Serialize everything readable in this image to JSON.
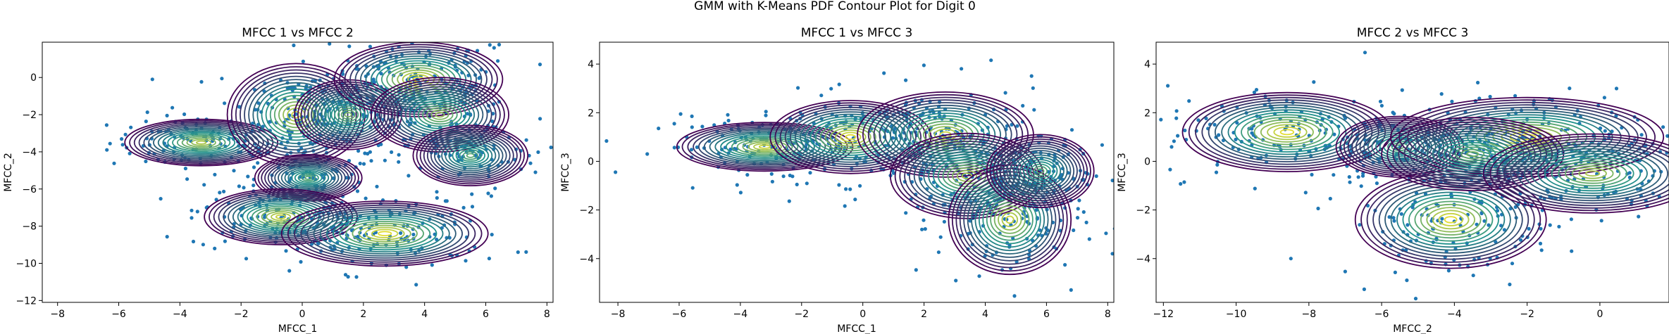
{
  "figure": {
    "suptitle": "GMM with K-Means PDF Contour Plot for Digit 0"
  },
  "colors": {
    "points": "#1f77b4",
    "contour_low": "#440154",
    "contour_mid": "#21918c",
    "contour_high": "#fde725"
  },
  "chart_data": [
    {
      "type": "scatter",
      "title": "MFCC 1 vs MFCC 2",
      "xlabel": "MFCC_1",
      "ylabel": "MFCC_2",
      "xlim": [
        -8.5,
        8.2
      ],
      "ylim": [
        -12.1,
        1.9
      ],
      "xticks": [
        -8,
        -6,
        -4,
        -2,
        0,
        2,
        4,
        6,
        8
      ],
      "yticks": [
        -12,
        -10,
        -8,
        -6,
        -4,
        -2,
        0
      ],
      "overlay": "gmm-contours",
      "components": [
        {
          "cx": -3.3,
          "cy": -3.5,
          "sx": 2.0,
          "sy": 1.0,
          "w": 0.8
        },
        {
          "cx": -0.2,
          "cy": -2.0,
          "sx": 1.8,
          "sy": 2.2,
          "w": 0.9
        },
        {
          "cx": 1.5,
          "cy": -2.0,
          "sx": 1.4,
          "sy": 1.5,
          "w": 0.6
        },
        {
          "cx": 3.8,
          "cy": -0.1,
          "sx": 2.2,
          "sy": 1.6,
          "w": 1.0
        },
        {
          "cx": 4.5,
          "cy": -2.0,
          "sx": 1.8,
          "sy": 1.6,
          "w": 0.7
        },
        {
          "cx": 5.5,
          "cy": -4.2,
          "sx": 1.5,
          "sy": 1.3,
          "w": 0.5
        },
        {
          "cx": 0.2,
          "cy": -5.4,
          "sx": 1.4,
          "sy": 1.0,
          "w": 0.5
        },
        {
          "cx": -0.7,
          "cy": -7.5,
          "sx": 2.0,
          "sy": 1.2,
          "w": 0.9
        },
        {
          "cx": 2.7,
          "cy": -8.4,
          "sx": 2.7,
          "sy": 1.4,
          "w": 1.0
        }
      ]
    },
    {
      "type": "scatter",
      "title": "MFCC 1 vs MFCC 3",
      "xlabel": "MFCC_1",
      "ylabel": "MFCC_3",
      "xlim": [
        -8.6,
        8.2
      ],
      "ylim": [
        -5.8,
        4.9
      ],
      "xticks": [
        -8,
        -6,
        -4,
        -2,
        0,
        2,
        4,
        6,
        8
      ],
      "yticks": [
        -4,
        -2,
        0,
        2,
        4
      ],
      "overlay": "gmm-contours",
      "components": [
        {
          "cx": -3.2,
          "cy": 0.6,
          "sx": 2.3,
          "sy": 0.8,
          "w": 0.9
        },
        {
          "cx": -0.4,
          "cy": 1.0,
          "sx": 2.1,
          "sy": 1.2,
          "w": 1.0
        },
        {
          "cx": 2.7,
          "cy": 1.1,
          "sx": 2.3,
          "sy": 1.4,
          "w": 0.9
        },
        {
          "cx": 3.4,
          "cy": -0.6,
          "sx": 2.0,
          "sy": 1.4,
          "w": 0.8
        },
        {
          "cx": 4.8,
          "cy": -2.4,
          "sx": 1.6,
          "sy": 1.8,
          "w": 0.9
        },
        {
          "cx": 5.8,
          "cy": -0.4,
          "sx": 1.4,
          "sy": 1.2,
          "w": 0.5
        }
      ]
    },
    {
      "type": "scatter",
      "title": "MFCC 2 vs MFCC 3",
      "xlabel": "MFCC_2",
      "ylabel": "MFCC_3",
      "xlim": [
        -12.2,
        1.9
      ],
      "ylim": [
        -5.8,
        4.9
      ],
      "xticks": [
        -12,
        -10,
        -8,
        -6,
        -4,
        -2,
        0
      ],
      "yticks": [
        -4,
        -2,
        0,
        2,
        4
      ],
      "overlay": "gmm-contours",
      "components": [
        {
          "cx": -8.6,
          "cy": 1.2,
          "sx": 2.3,
          "sy": 1.3,
          "w": 1.0
        },
        {
          "cx": -5.5,
          "cy": 0.6,
          "sx": 1.4,
          "sy": 1.0,
          "w": 0.5
        },
        {
          "cx": -4.1,
          "cy": -2.4,
          "sx": 2.1,
          "sy": 1.6,
          "w": 1.0
        },
        {
          "cx": -2.0,
          "cy": 1.0,
          "sx": 3.0,
          "sy": 1.3,
          "w": 1.0
        },
        {
          "cx": -3.5,
          "cy": 0.3,
          "sx": 2.0,
          "sy": 1.2,
          "w": 0.6
        },
        {
          "cx": -0.2,
          "cy": -0.5,
          "sx": 2.4,
          "sy": 1.3,
          "w": 0.8
        }
      ]
    }
  ]
}
